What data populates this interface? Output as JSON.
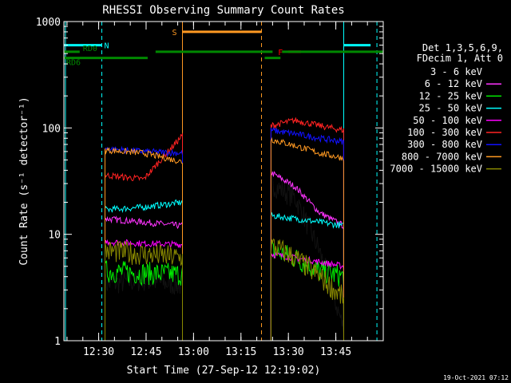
{
  "chart_data": {
    "type": "line",
    "title": "RHESSI Observing Summary Count Rates",
    "xlabel": "Start Time (27-Sep-12 12:19:02)",
    "ylabel": "Count Rate (s⁻¹ detector⁻¹)",
    "yscale": "log",
    "ylim": [
      1,
      1000
    ],
    "xlim_minutes": [
      739,
      840
    ],
    "x_ticks": [
      {
        "minute": 750,
        "label": "12:30"
      },
      {
        "minute": 765,
        "label": "12:45"
      },
      {
        "minute": 780,
        "label": "13:00"
      },
      {
        "minute": 795,
        "label": "13:15"
      },
      {
        "minute": 810,
        "label": "13:30"
      },
      {
        "minute": 825,
        "label": "13:45"
      }
    ],
    "y_ticks": [
      {
        "value": 1,
        "label": "1"
      },
      {
        "value": 10,
        "label": "10"
      },
      {
        "value": 100,
        "label": "100"
      },
      {
        "value": 1000,
        "label": "1000"
      }
    ],
    "legend_header": [
      "Det 1,3,5,6,9,",
      "FDecim 1, Att 0"
    ],
    "legend_placement": "right",
    "segments": [
      [
        752,
        776.5
      ],
      [
        804.5,
        827.5
      ]
    ],
    "series": [
      {
        "name": "3 - 6 keV",
        "color": "#000000",
        "a": [
          3.4,
          3.7,
          3.3
        ],
        "b": [
          30,
          22,
          7,
          1.3
        ]
      },
      {
        "name": "6 - 12 keV",
        "color": "#ff33ff",
        "a": [
          14,
          13,
          12
        ],
        "b": [
          38,
          28,
          16,
          12
        ]
      },
      {
        "name": "12 - 25 keV",
        "color": "#00ee00",
        "a": [
          4.5,
          4.3,
          4.2
        ],
        "b": [
          7,
          6,
          4.5,
          4
        ]
      },
      {
        "name": "25 - 50 keV",
        "color": "#00ffff",
        "a": [
          17,
          18,
          20
        ],
        "b": [
          15,
          14,
          13,
          12
        ]
      },
      {
        "name": "50 - 100 keV",
        "color": "#ff00ff",
        "a": [
          8.5,
          8.2,
          8
        ],
        "b": [
          6.5,
          6,
          5.5,
          5
        ]
      },
      {
        "name": "100 - 300 keV",
        "color": "#ff2222",
        "a": [
          36,
          33,
          85
        ],
        "b": [
          105,
          118,
          105,
          95
        ]
      },
      {
        "name": "300 - 800 keV",
        "color": "#1111ff",
        "a": [
          64,
          60,
          58
        ],
        "b": [
          95,
          88,
          80,
          74
        ]
      },
      {
        "name": "800 - 7000 keV",
        "color": "#ff9922",
        "a": [
          62,
          58,
          48
        ],
        "b": [
          78,
          68,
          58,
          52
        ]
      },
      {
        "name": "7000 - 15000 keV",
        "color": "#888800",
        "a": [
          7,
          6.5,
          6
        ],
        "b": [
          8,
          6,
          4,
          2.5
        ]
      }
    ],
    "flags": [
      {
        "name": "N",
        "color": "#00ffff",
        "y": 600,
        "ranges": [
          [
            739,
            751
          ],
          [
            827.5,
            836
          ]
        ]
      },
      {
        "name": "S",
        "color": "#ff9922",
        "y": 800,
        "ranges": [
          [
            776.5,
            801.5
          ]
        ]
      },
      {
        "name": "F",
        "color": "#ff0000",
        "y": 520,
        "ranges": [
          [
            810,
            814
          ]
        ]
      },
      {
        "name": "RD0",
        "color": "#008800",
        "y": 520,
        "ranges": [
          [
            739,
            744
          ],
          [
            768,
            805
          ],
          [
            808,
            840
          ]
        ]
      },
      {
        "name": "RD6",
        "color": "#008800",
        "y": 455,
        "ranges": [
          [
            739,
            765.5
          ],
          [
            802.5,
            807.5
          ]
        ]
      }
    ],
    "markers": [
      {
        "minute": 739.5,
        "color": "#00ffff",
        "style": "solid"
      },
      {
        "minute": 751,
        "color": "#00ffff",
        "style": "dashed"
      },
      {
        "minute": 776.5,
        "color": "#ff9922",
        "style": "solid"
      },
      {
        "minute": 801.5,
        "color": "#ff9922",
        "style": "dashed"
      },
      {
        "minute": 827.5,
        "color": "#00ffff",
        "style": "solid"
      },
      {
        "minute": 838,
        "color": "#00ffff",
        "style": "dashed"
      }
    ]
  },
  "footer_timestamp": "19-Oct-2021 07:12"
}
